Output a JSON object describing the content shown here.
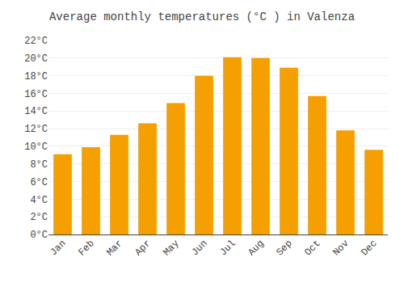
{
  "chart_data": {
    "type": "bar",
    "title": "Average monthly temperatures (°C ) in Valenza",
    "categories": [
      "Jan",
      "Feb",
      "Mar",
      "Apr",
      "May",
      "Jun",
      "Jul",
      "Aug",
      "Sep",
      "Oct",
      "Nov",
      "Dec"
    ],
    "values": [
      9.1,
      9.9,
      11.3,
      12.6,
      14.9,
      18.0,
      20.1,
      20.0,
      18.9,
      15.7,
      11.8,
      9.6
    ],
    "color": "#F5A000",
    "ylim": [
      0,
      22
    ],
    "yticks": [
      {
        "value": 0,
        "label": "0°C"
      },
      {
        "value": 2,
        "label": "2°C"
      },
      {
        "value": 4,
        "label": "4°C"
      },
      {
        "value": 6,
        "label": "6°C"
      },
      {
        "value": 8,
        "label": "8°C"
      },
      {
        "value": 10,
        "label": "10°C"
      },
      {
        "value": 12,
        "label": "12°C"
      },
      {
        "value": 14,
        "label": "14°C"
      },
      {
        "value": 16,
        "label": "16°C"
      },
      {
        "value": 18,
        "label": "18°C"
      },
      {
        "value": 20,
        "label": "20°C"
      },
      {
        "value": 22,
        "label": "22°C"
      }
    ],
    "grid": true
  }
}
